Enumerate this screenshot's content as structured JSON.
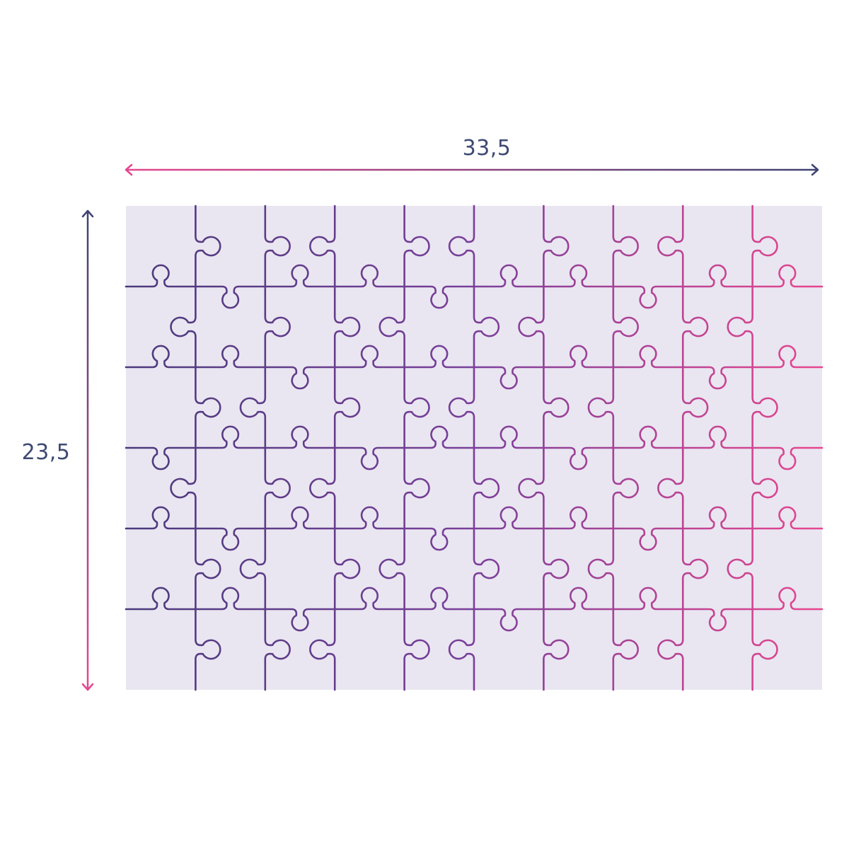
{
  "dimensions": {
    "width_label": "33,5",
    "height_label": "23,5"
  },
  "puzzle": {
    "columns": 10,
    "rows": 6,
    "background_color": "#e9e6f1",
    "gradient_start_color": "#4b3a7c",
    "gradient_end_color": "#e8468f"
  },
  "icons": {
    "width_arrow": "double-headed-horizontal-arrow",
    "height_arrow": "double-headed-vertical-arrow"
  }
}
